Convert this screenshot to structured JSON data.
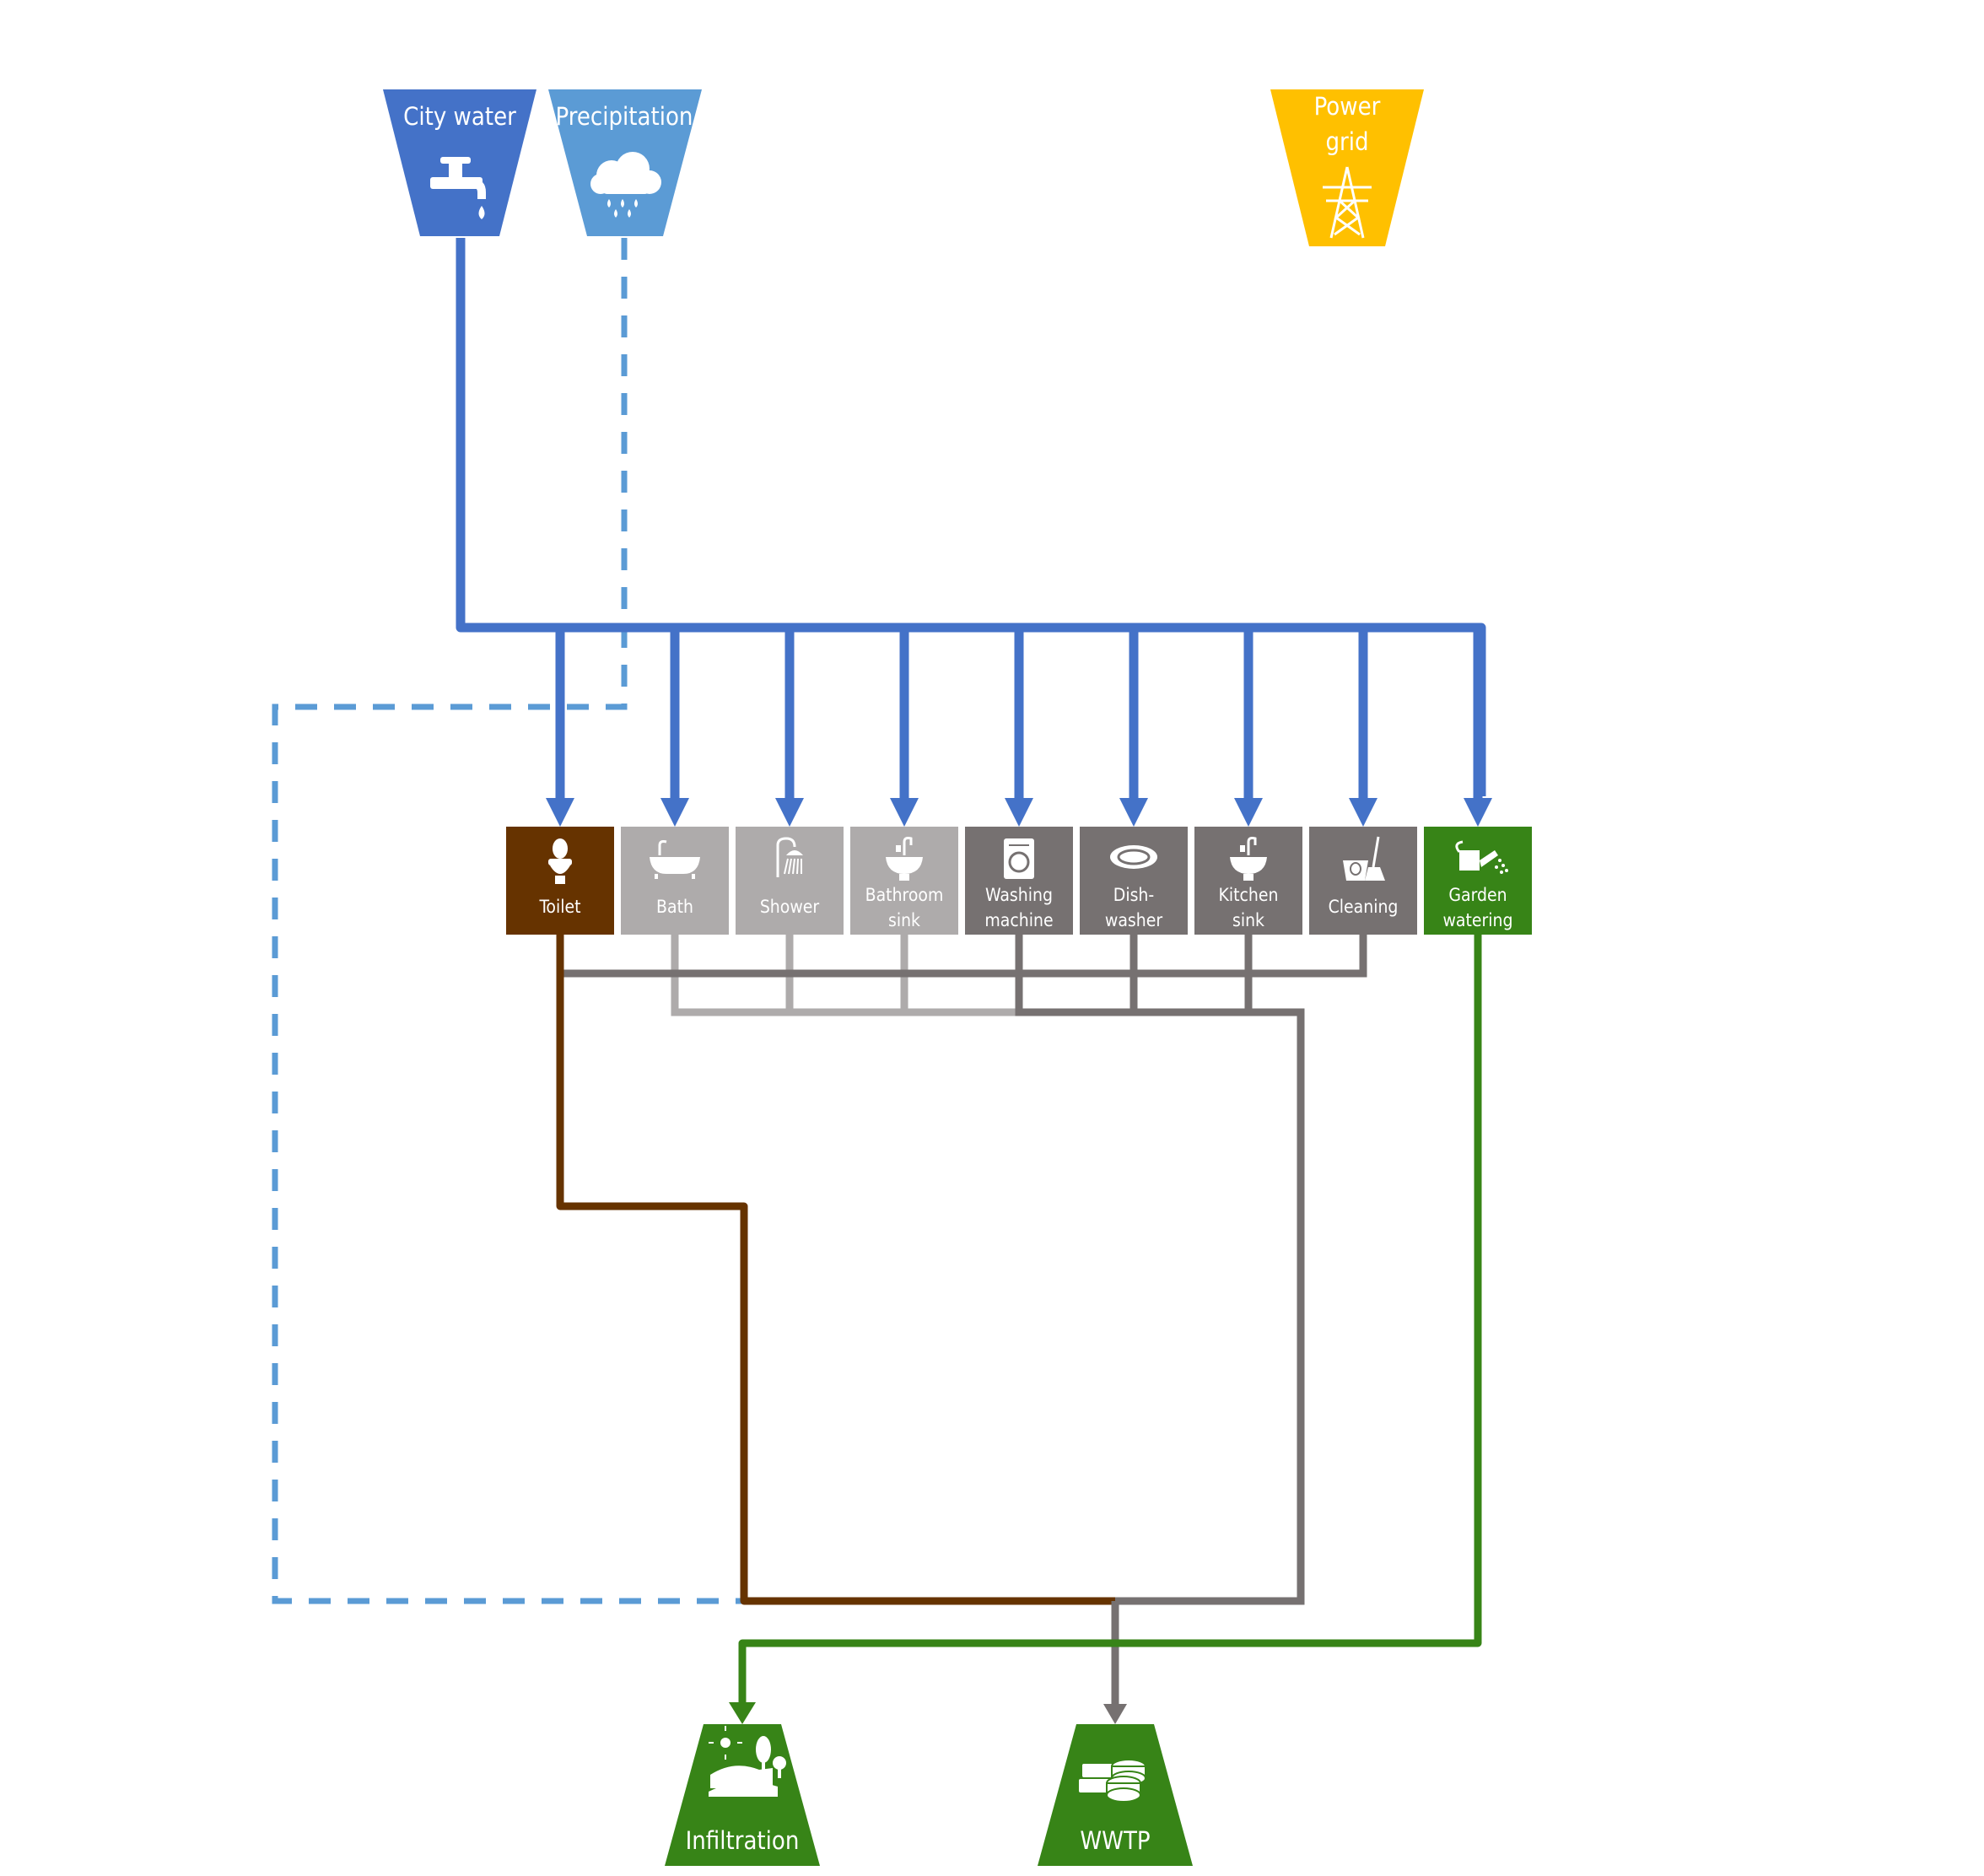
{
  "colors": {
    "city_water": "#4472C8",
    "precipitation": "#5B9BD5",
    "power_grid": "#FFC000",
    "toilet": "#663300",
    "light_grey": "#AEABAB",
    "dark_grey": "#767171",
    "green": "#378417"
  },
  "sources": [
    {
      "id": "city-water",
      "label": "City water",
      "icon": "tap-icon"
    },
    {
      "id": "precipitation",
      "label": "Precipitation",
      "icon": "rain-cloud-icon"
    },
    {
      "id": "power-grid",
      "label_lines": [
        "Power",
        "grid"
      ],
      "icon": "power-pylon-icon"
    }
  ],
  "uses": [
    {
      "id": "toilet",
      "label_lines": [
        "Toilet"
      ],
      "icon": "toilet-icon",
      "group": "blackwater"
    },
    {
      "id": "bath",
      "label_lines": [
        "Bath"
      ],
      "icon": "bathtub-icon",
      "group": "light-greywater"
    },
    {
      "id": "shower",
      "label_lines": [
        "Shower"
      ],
      "icon": "shower-icon",
      "group": "light-greywater"
    },
    {
      "id": "bathroom-sink",
      "label_lines": [
        "Bathroom",
        "sink"
      ],
      "icon": "sink-icon",
      "group": "light-greywater"
    },
    {
      "id": "washing-machine",
      "label_lines": [
        "Washing",
        "machine"
      ],
      "icon": "washing-machine-icon",
      "group": "dark-greywater"
    },
    {
      "id": "dishwasher",
      "label_lines": [
        "Dish-",
        "washer"
      ],
      "icon": "plate-icon",
      "group": "dark-greywater"
    },
    {
      "id": "kitchen-sink",
      "label_lines": [
        "Kitchen",
        "sink"
      ],
      "icon": "sink-icon",
      "group": "dark-greywater"
    },
    {
      "id": "cleaning",
      "label_lines": [
        "Cleaning"
      ],
      "icon": "bucket-broom-icon",
      "group": "dark-greywater"
    },
    {
      "id": "garden-watering",
      "label_lines": [
        "Garden",
        "watering"
      ],
      "icon": "watering-can-icon",
      "group": "garden"
    }
  ],
  "sinks": [
    {
      "id": "infiltration",
      "label": "Infiltration",
      "icon": "landscape-icon"
    },
    {
      "id": "wwtp",
      "label": "WWTP",
      "icon": "treatment-tanks-icon"
    }
  ]
}
